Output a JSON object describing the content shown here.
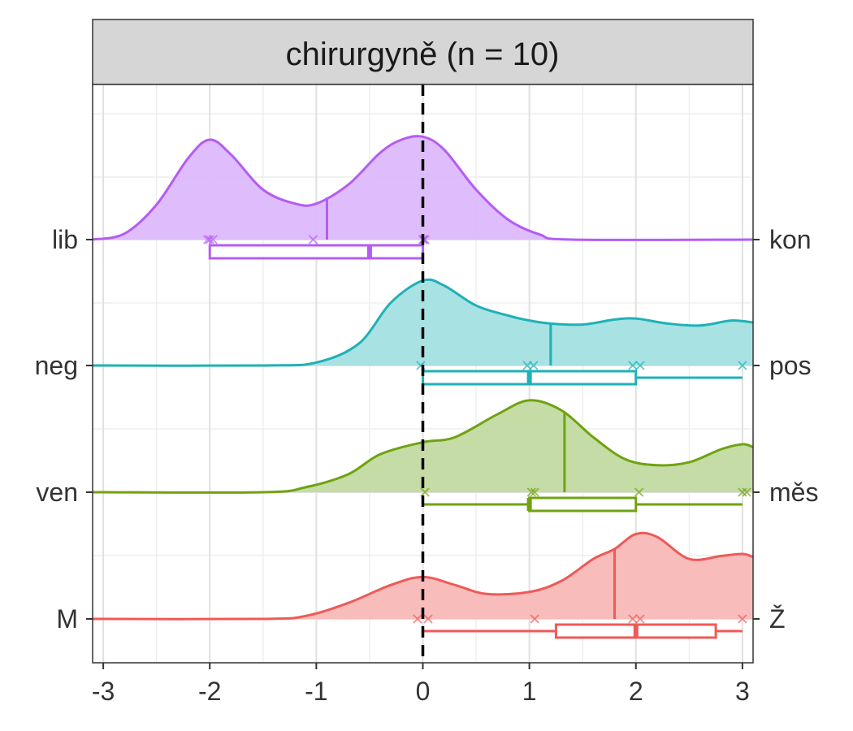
{
  "chart_data": {
    "type": "ridgeline",
    "title": "chirurgyně (n = 10)",
    "xlim": [
      -3.1,
      3.1
    ],
    "x_ticks": [
      -3,
      -2,
      -1,
      0,
      1,
      2,
      3
    ],
    "x_tick_labels": [
      "-3",
      "-2",
      "-1",
      "0",
      "1",
      "2",
      "3"
    ],
    "reference_line_x": 0,
    "grid": true,
    "series": [
      {
        "left_label": "lib",
        "right_label": "kon",
        "color": "#B45CF5",
        "fill": "#DDB8FB",
        "mean": -0.9,
        "points": [
          -2.02,
          -2.0,
          -1.97,
          -1.03,
          0.0,
          0.01,
          0.02
        ],
        "box": {
          "min": -2,
          "q1": -2,
          "median": -0.5,
          "q3": 0,
          "max": 0
        },
        "density": [
          [
            -3.1,
            0.0
          ],
          [
            -2.8,
            0.06
          ],
          [
            -2.5,
            0.35
          ],
          [
            -2.2,
            0.82
          ],
          [
            -2.0,
            1.0
          ],
          [
            -1.8,
            0.85
          ],
          [
            -1.5,
            0.5
          ],
          [
            -1.2,
            0.36
          ],
          [
            -1.0,
            0.36
          ],
          [
            -0.7,
            0.55
          ],
          [
            -0.4,
            0.87
          ],
          [
            -0.2,
            1.0
          ],
          [
            0.0,
            1.03
          ],
          [
            0.2,
            0.9
          ],
          [
            0.5,
            0.5
          ],
          [
            0.8,
            0.2
          ],
          [
            1.1,
            0.05
          ],
          [
            1.4,
            0.0
          ],
          [
            3.1,
            0.0
          ]
        ]
      },
      {
        "left_label": "neg",
        "right_label": "pos",
        "color": "#1FB1B5",
        "fill": "#A3E0E1",
        "mean": 1.2,
        "points": [
          -0.02,
          0.98,
          1.04,
          1.97,
          2.04,
          3.0
        ],
        "box": {
          "min": 0,
          "q1": 0,
          "median": 1,
          "q3": 2,
          "max": 3
        },
        "density": [
          [
            -3.1,
            0.0
          ],
          [
            -1.5,
            0.0
          ],
          [
            -1.0,
            0.03
          ],
          [
            -0.6,
            0.22
          ],
          [
            -0.3,
            0.63
          ],
          [
            0.0,
            0.85
          ],
          [
            0.2,
            0.8
          ],
          [
            0.5,
            0.6
          ],
          [
            0.8,
            0.5
          ],
          [
            1.0,
            0.45
          ],
          [
            1.2,
            0.42
          ],
          [
            1.5,
            0.41
          ],
          [
            1.8,
            0.46
          ],
          [
            2.0,
            0.47
          ],
          [
            2.3,
            0.42
          ],
          [
            2.6,
            0.4
          ],
          [
            2.9,
            0.45
          ],
          [
            3.1,
            0.43
          ]
        ]
      },
      {
        "left_label": "ven",
        "right_label": "měs",
        "color": "#6FA310",
        "fill": "#C2DAA1",
        "mean": 1.33,
        "points": [
          0.02,
          1.02,
          1.05,
          2.03,
          3.0,
          3.04
        ],
        "box": {
          "min": 0,
          "q1": 1,
          "median": 1,
          "q3": 2,
          "max": 3
        },
        "density": [
          [
            -3.1,
            0.0
          ],
          [
            -1.5,
            0.0
          ],
          [
            -1.1,
            0.05
          ],
          [
            -0.7,
            0.18
          ],
          [
            -0.4,
            0.38
          ],
          [
            0.0,
            0.5
          ],
          [
            0.3,
            0.55
          ],
          [
            0.7,
            0.78
          ],
          [
            1.0,
            0.92
          ],
          [
            1.3,
            0.82
          ],
          [
            1.6,
            0.55
          ],
          [
            1.9,
            0.33
          ],
          [
            2.2,
            0.27
          ],
          [
            2.5,
            0.3
          ],
          [
            2.8,
            0.43
          ],
          [
            3.0,
            0.48
          ],
          [
            3.1,
            0.45
          ]
        ]
      },
      {
        "left_label": "M",
        "right_label": "Ž",
        "color": "#EE5A57",
        "fill": "#F8B8B6",
        "mean": 1.8,
        "points": [
          -0.05,
          0.05,
          1.05,
          1.97,
          2.04,
          3.0
        ],
        "box": {
          "min": 0,
          "q1": 1.25,
          "median": 2,
          "q3": 2.75,
          "max": 3
        },
        "density": [
          [
            -3.1,
            0.0
          ],
          [
            -1.5,
            0.0
          ],
          [
            -1.1,
            0.03
          ],
          [
            -0.7,
            0.16
          ],
          [
            -0.3,
            0.34
          ],
          [
            0.0,
            0.42
          ],
          [
            0.3,
            0.34
          ],
          [
            0.6,
            0.25
          ],
          [
            1.0,
            0.27
          ],
          [
            1.3,
            0.38
          ],
          [
            1.6,
            0.6
          ],
          [
            1.8,
            0.7
          ],
          [
            2.0,
            0.85
          ],
          [
            2.2,
            0.82
          ],
          [
            2.5,
            0.6
          ],
          [
            2.8,
            0.63
          ],
          [
            3.0,
            0.65
          ],
          [
            3.1,
            0.62
          ]
        ]
      }
    ]
  }
}
